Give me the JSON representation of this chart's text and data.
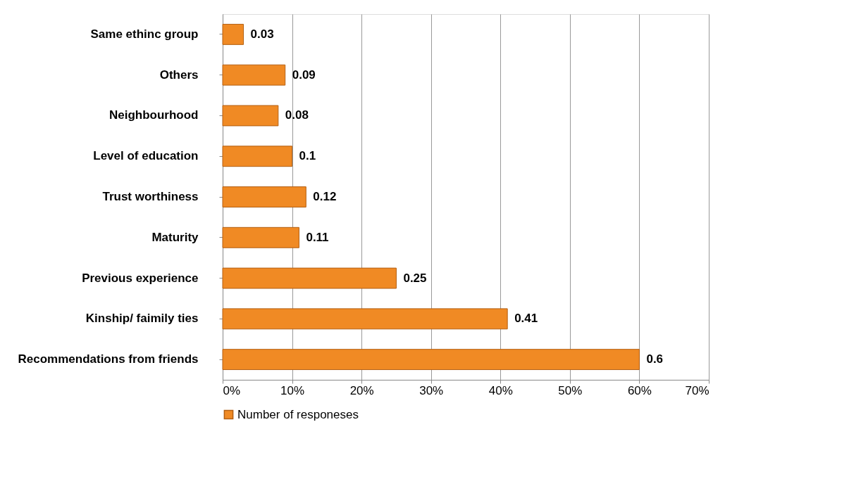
{
  "chart_data": {
    "type": "bar",
    "orientation": "horizontal",
    "categories": [
      "Same ethinc group",
      "Others",
      "Neighbourhood",
      "Level of education",
      "Trust worthiness",
      "Maturity",
      "Previous experience",
      "Kinship/ faimily ties",
      "Recommendations from  friends"
    ],
    "series": [
      {
        "name": "Number of responeses",
        "color": "#f08a24",
        "values": [
          0.03,
          0.09,
          0.08,
          0.1,
          0.12,
          0.11,
          0.25,
          0.41,
          0.6
        ]
      }
    ],
    "xlim": [
      0,
      0.7
    ],
    "xticks": [
      {
        "value": 0,
        "label": "0%"
      },
      {
        "value": 0.1,
        "label": "10%"
      },
      {
        "value": 0.2,
        "label": "20%"
      },
      {
        "value": 0.3,
        "label": "30%"
      },
      {
        "value": 0.4,
        "label": "40%"
      },
      {
        "value": 0.5,
        "label": "50%"
      },
      {
        "value": 0.6,
        "label": "60%"
      },
      {
        "value": 0.7,
        "label": "70%"
      }
    ],
    "grid": "x",
    "legend": "bottom",
    "data_labels": true
  }
}
